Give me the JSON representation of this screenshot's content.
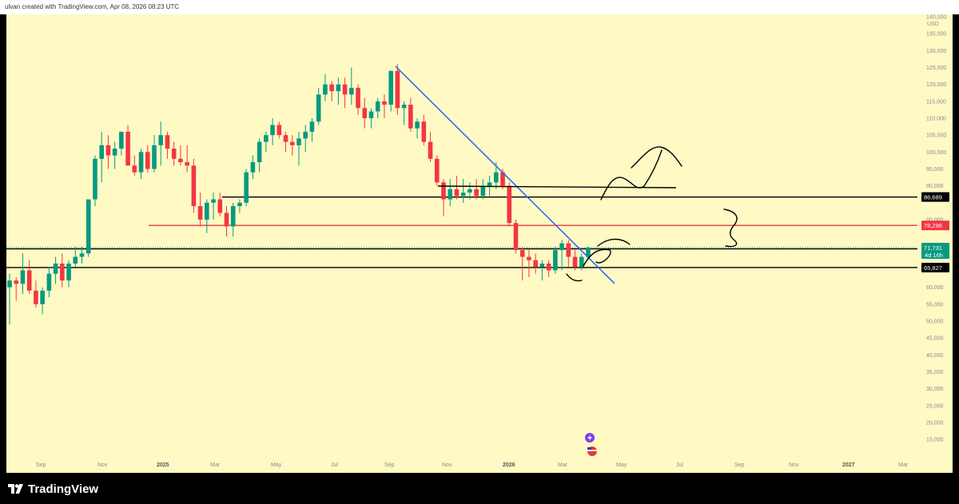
{
  "header": {
    "caption": "ulvan created with TradingView.com, Apr 08, 2026 08:23 UTC"
  },
  "footer": {
    "brand": "TradingView"
  },
  "chart_data": {
    "type": "candlestick",
    "currency_label": "USD",
    "yaxis_labels": [
      {
        "v": 140000,
        "t": "140,000"
      },
      {
        "v": 135000,
        "t": "135,000"
      },
      {
        "v": 130000,
        "t": "130,000"
      },
      {
        "v": 125000,
        "t": "125,000"
      },
      {
        "v": 120000,
        "t": "120,000"
      },
      {
        "v": 115000,
        "t": "115,000"
      },
      {
        "v": 110000,
        "t": "110,000"
      },
      {
        "v": 105000,
        "t": "105,000"
      },
      {
        "v": 100000,
        "t": "100,000"
      },
      {
        "v": 95000,
        "t": "95,000"
      },
      {
        "v": 90000,
        "t": "90,000"
      },
      {
        "v": 80000,
        "t": "80,000"
      },
      {
        "v": 60000,
        "t": "60,000"
      },
      {
        "v": 55000,
        "t": "55,000"
      },
      {
        "v": 50000,
        "t": "50,000"
      },
      {
        "v": 45000,
        "t": "45,000"
      },
      {
        "v": 40000,
        "t": "40,000"
      },
      {
        "v": 35000,
        "t": "35,000"
      },
      {
        "v": 30000,
        "t": "30,000"
      },
      {
        "v": 25000,
        "t": "25,000"
      },
      {
        "v": 20000,
        "t": "20,000"
      },
      {
        "v": 15000,
        "t": "15,000"
      }
    ],
    "xaxis_labels": [
      {
        "t": "Sep",
        "bold": false
      },
      {
        "t": "Nov",
        "bold": false
      },
      {
        "t": "2025",
        "bold": true
      },
      {
        "t": "Mar",
        "bold": false
      },
      {
        "t": "May",
        "bold": false
      },
      {
        "t": "Jul",
        "bold": false
      },
      {
        "t": "Sep",
        "bold": false
      },
      {
        "t": "Nov",
        "bold": false
      },
      {
        "t": "2026",
        "bold": true
      },
      {
        "t": "Mar",
        "bold": false
      },
      {
        "t": "May",
        "bold": false
      },
      {
        "t": "Jul",
        "bold": false
      },
      {
        "t": "Sep",
        "bold": false
      },
      {
        "t": "Nov",
        "bold": false
      },
      {
        "t": "2027",
        "bold": true
      },
      {
        "t": "Mar",
        "bold": false
      }
    ],
    "horizontal_levels": [
      {
        "value": 86689,
        "label": "86,689",
        "color": "#000000",
        "badge_bg": "#000000"
      },
      {
        "value": 78296,
        "label": "78,296",
        "color": "#f23645",
        "badge_bg": "#f23645"
      },
      {
        "value": 71366,
        "label": "71,366",
        "color": "#000000",
        "badge_bg": "#000000"
      },
      {
        "value": 65827,
        "label": "65,827",
        "color": "#000000",
        "badge_bg": "#000000"
      }
    ],
    "current_price": {
      "value": 71731,
      "label": "71,731",
      "countdown": "4d 16h",
      "badge_bg": "#089981"
    },
    "colors": {
      "background": "#fff9c4",
      "up": "#089981",
      "down": "#f23645",
      "trendline": "#2962ff"
    },
    "candles": [
      [
        60000,
        64000,
        49000,
        62000
      ],
      [
        62000,
        63000,
        56000,
        61000
      ],
      [
        61000,
        70000,
        58000,
        65000
      ],
      [
        65000,
        68000,
        58000,
        59000
      ],
      [
        59000,
        62000,
        54000,
        55000
      ],
      [
        55000,
        60000,
        52000,
        59000
      ],
      [
        59000,
        66000,
        57000,
        64000
      ],
      [
        64000,
        69000,
        61000,
        67000
      ],
      [
        67000,
        70000,
        60000,
        62000
      ],
      [
        62000,
        68000,
        60000,
        67000
      ],
      [
        67000,
        72000,
        66000,
        69000
      ],
      [
        69000,
        72000,
        67000,
        70000
      ],
      [
        70000,
        86000,
        69000,
        86000
      ],
      [
        86000,
        99000,
        84000,
        98000
      ],
      [
        98000,
        106000,
        91000,
        102000
      ],
      [
        102000,
        105000,
        95000,
        99000
      ],
      [
        99000,
        103000,
        95000,
        101000
      ],
      [
        101000,
        106000,
        99000,
        106000
      ],
      [
        106000,
        108000,
        96000,
        96000
      ],
      [
        96000,
        99000,
        93000,
        94000
      ],
      [
        94000,
        101000,
        92000,
        100000
      ],
      [
        100000,
        102000,
        94000,
        95000
      ],
      [
        95000,
        105000,
        94000,
        102000
      ],
      [
        102000,
        109000,
        96000,
        105000
      ],
      [
        105000,
        106000,
        98000,
        101000
      ],
      [
        101000,
        103000,
        96000,
        98000
      ],
      [
        98000,
        102000,
        96000,
        97000
      ],
      [
        97000,
        102000,
        94000,
        96000
      ],
      [
        96000,
        98000,
        82000,
        84000
      ],
      [
        84000,
        88000,
        78000,
        80000
      ],
      [
        80000,
        86000,
        76000,
        85000
      ],
      [
        85000,
        88000,
        80000,
        86000
      ],
      [
        86000,
        88000,
        81000,
        82000
      ],
      [
        82000,
        84000,
        75000,
        78000
      ],
      [
        78000,
        85000,
        75000,
        84000
      ],
      [
        84000,
        86000,
        82000,
        85000
      ],
      [
        85000,
        95000,
        84000,
        94000
      ],
      [
        94000,
        99000,
        92000,
        97000
      ],
      [
        97000,
        104000,
        94000,
        103000
      ],
      [
        103000,
        106000,
        100000,
        105000
      ],
      [
        105000,
        110000,
        102000,
        108000
      ],
      [
        108000,
        109000,
        104000,
        105000
      ],
      [
        105000,
        106000,
        100000,
        103000
      ],
      [
        103000,
        105000,
        99000,
        102000
      ],
      [
        102000,
        106000,
        96000,
        104000
      ],
      [
        104000,
        108000,
        100000,
        106000
      ],
      [
        106000,
        110000,
        103000,
        109000
      ],
      [
        109000,
        119000,
        108000,
        117000
      ],
      [
        117000,
        123000,
        115000,
        120000
      ],
      [
        120000,
        121000,
        115000,
        118000
      ],
      [
        118000,
        122000,
        114000,
        120000
      ],
      [
        120000,
        122000,
        113000,
        117000
      ],
      [
        117000,
        125000,
        114000,
        119000
      ],
      [
        119000,
        120000,
        111000,
        113000
      ],
      [
        113000,
        116000,
        107000,
        110000
      ],
      [
        110000,
        113000,
        107000,
        112000
      ],
      [
        112000,
        116000,
        110000,
        115000
      ],
      [
        115000,
        117000,
        110000,
        114000
      ],
      [
        114000,
        124000,
        112000,
        124000
      ],
      [
        124000,
        126000,
        111000,
        113000
      ],
      [
        113000,
        115000,
        108000,
        114000
      ],
      [
        114000,
        116000,
        106000,
        107000
      ],
      [
        107000,
        110000,
        104000,
        109000
      ],
      [
        109000,
        111000,
        102000,
        103000
      ],
      [
        103000,
        106000,
        97000,
        98000
      ],
      [
        98000,
        99000,
        90000,
        91000
      ],
      [
        91000,
        92000,
        81000,
        86000
      ],
      [
        86000,
        92000,
        84000,
        89000
      ],
      [
        89000,
        93000,
        86000,
        87000
      ],
      [
        87000,
        92000,
        85000,
        88000
      ],
      [
        88000,
        91000,
        86000,
        89000
      ],
      [
        89000,
        92000,
        86000,
        87000
      ],
      [
        87000,
        92000,
        86000,
        90000
      ],
      [
        90000,
        93000,
        87000,
        91000
      ],
      [
        91000,
        97000,
        89000,
        94000
      ],
      [
        94000,
        95000,
        89000,
        90000
      ],
      [
        90000,
        91000,
        78000,
        79000
      ],
      [
        79000,
        80000,
        70000,
        71000
      ],
      [
        71000,
        72000,
        62000,
        69000
      ],
      [
        69000,
        71000,
        63000,
        68000
      ],
      [
        68000,
        70000,
        64000,
        66000
      ],
      [
        66000,
        68000,
        62000,
        67000
      ],
      [
        67000,
        68000,
        63000,
        65000
      ],
      [
        65000,
        72000,
        64000,
        71000
      ],
      [
        71000,
        74000,
        65000,
        73000
      ],
      [
        73000,
        74000,
        66000,
        69000
      ],
      [
        69000,
        71000,
        65000,
        66000
      ],
      [
        66000,
        70000,
        65000,
        69000
      ],
      [
        69000,
        72000,
        68000,
        71731
      ]
    ],
    "annotations": {
      "downtrend_line": true,
      "drawn_arrows": true,
      "range_bracket": true
    }
  }
}
